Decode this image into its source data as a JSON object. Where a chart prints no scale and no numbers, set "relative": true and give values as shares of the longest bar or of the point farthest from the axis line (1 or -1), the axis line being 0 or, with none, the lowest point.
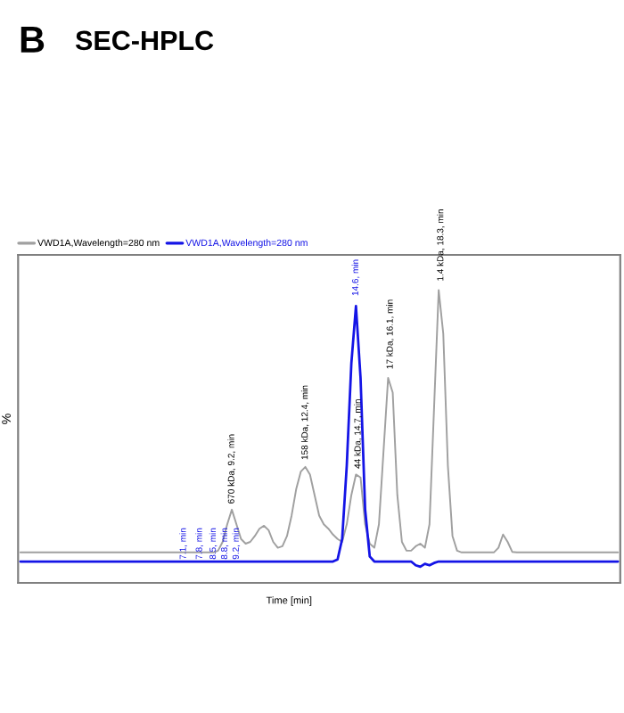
{
  "chart_data": {
    "type": "line",
    "title": "SEC-HPLC",
    "xlabel": "Time [min]",
    "ylabel": "%",
    "relative": true,
    "grid": false,
    "legend": "top left",
    "categories": [
      null,
      null,
      null,
      null,
      null,
      null,
      null,
      null,
      null,
      null,
      null,
      null,
      null,
      null,
      null,
      null,
      null,
      null,
      null,
      null,
      null,
      null,
      null,
      null,
      null,
      null,
      null,
      null,
      null,
      null,
      null,
      null,
      null,
      null,
      null,
      null,
      null,
      null,
      null,
      null,
      null,
      null,
      null,
      null,
      null,
      null,
      null,
      null,
      null,
      null,
      null,
      null,
      null,
      null,
      null,
      null,
      null,
      null,
      null,
      null,
      null,
      null,
      null,
      null,
      null,
      null,
      null,
      null,
      null,
      null,
      null,
      null,
      null,
      null,
      null,
      null,
      null,
      null,
      null,
      null,
      null,
      null,
      null,
      null,
      null,
      null,
      null,
      null,
      null,
      null,
      null,
      null,
      null,
      null,
      null,
      null,
      null,
      null,
      null,
      null,
      null,
      null,
      null,
      null,
      null,
      null,
      null,
      null,
      null,
      null,
      null,
      null,
      null,
      null,
      null,
      null,
      null,
      null,
      null,
      null,
      null,
      null,
      null,
      null,
      null,
      null,
      null,
      null,
      null,
      null,
      null
    ],
    "series": [
      {
        "name": "VWD1A,Wavelength=280 nm",
        "color": "#a0a0a0",
        "values": [
          0.104,
          0.104,
          0.104,
          0.104,
          0.104,
          0.104,
          0.104,
          0.104,
          0.104,
          0.104,
          0.104,
          0.104,
          0.104,
          0.104,
          0.104,
          0.104,
          0.104,
          0.104,
          0.104,
          0.104,
          0.104,
          0.104,
          0.104,
          0.104,
          0.104,
          0.104,
          0.104,
          0.104,
          0.104,
          0.104,
          0.104,
          0.104,
          0.104,
          0.104,
          0.104,
          0.104,
          0.104,
          0.104,
          0.104,
          0.104,
          0.104,
          0.104,
          0.104,
          0.11,
          0.14,
          0.2,
          0.25,
          0.2,
          0.15,
          0.134,
          0.14,
          0.16,
          0.185,
          0.195,
          0.18,
          0.14,
          0.12,
          0.125,
          0.16,
          0.23,
          0.32,
          0.38,
          0.396,
          0.37,
          0.3,
          0.23,
          0.2,
          0.185,
          0.165,
          0.15,
          0.14,
          0.2,
          0.3,
          0.37,
          0.36,
          0.2,
          0.134,
          0.12,
          0.2,
          0.45,
          0.7,
          0.65,
          0.3,
          0.14,
          0.11,
          0.11,
          0.125,
          0.134,
          0.12,
          0.2,
          0.6,
          1.0,
          0.85,
          0.4,
          0.16,
          0.11,
          0.104,
          0.104,
          0.104,
          0.104,
          0.104,
          0.104,
          0.104,
          0.104,
          0.12,
          0.165,
          0.14,
          0.106,
          0.104,
          0.104,
          0.104,
          0.104,
          0.104,
          0.104,
          0.104,
          0.104,
          0.104,
          0.104,
          0.104,
          0.104,
          0.104,
          0.104,
          0.104,
          0.104,
          0.104,
          0.104,
          0.104,
          0.104,
          0.104,
          0.104,
          0.104
        ]
      },
      {
        "name": "VWD1A,Wavelength=280 nm",
        "color": "#1414e6",
        "values": [
          0.073,
          0.073,
          0.073,
          0.073,
          0.073,
          0.073,
          0.073,
          0.073,
          0.073,
          0.073,
          0.073,
          0.073,
          0.073,
          0.073,
          0.073,
          0.073,
          0.073,
          0.073,
          0.073,
          0.073,
          0.073,
          0.073,
          0.073,
          0.073,
          0.073,
          0.073,
          0.073,
          0.073,
          0.073,
          0.073,
          0.073,
          0.073,
          0.073,
          0.073,
          0.073,
          0.073,
          0.073,
          0.073,
          0.073,
          0.073,
          0.073,
          0.073,
          0.073,
          0.073,
          0.073,
          0.073,
          0.073,
          0.073,
          0.073,
          0.073,
          0.073,
          0.073,
          0.073,
          0.073,
          0.073,
          0.073,
          0.073,
          0.073,
          0.073,
          0.073,
          0.073,
          0.073,
          0.073,
          0.073,
          0.073,
          0.073,
          0.073,
          0.073,
          0.073,
          0.08,
          0.15,
          0.4,
          0.75,
          0.945,
          0.7,
          0.25,
          0.09,
          0.073,
          0.073,
          0.073,
          0.073,
          0.073,
          0.073,
          0.073,
          0.073,
          0.073,
          0.06,
          0.055,
          0.065,
          0.06,
          0.068,
          0.073,
          0.073,
          0.073,
          0.073,
          0.073,
          0.073,
          0.073,
          0.073,
          0.073,
          0.073,
          0.073,
          0.073,
          0.073,
          0.073,
          0.073,
          0.073,
          0.073,
          0.073,
          0.073,
          0.073,
          0.073,
          0.073,
          0.073,
          0.073,
          0.073,
          0.073,
          0.073,
          0.073,
          0.073,
          0.073,
          0.073,
          0.073,
          0.073,
          0.073,
          0.073,
          0.073,
          0.073,
          0.073,
          0.073,
          0.073
        ]
      }
    ],
    "annotations": [
      "B",
      "670 kDa, 9.2, min",
      "158 kDa, 12.4, min",
      "44 kDa, 14.7, min",
      "17 kDa, 16.1, min",
      "1.4 kDa, 18.3, min",
      "14.6, min",
      "7.1, min",
      "7.8, min",
      "8.5, min",
      "8.8, min",
      "9.2, min"
    ]
  }
}
